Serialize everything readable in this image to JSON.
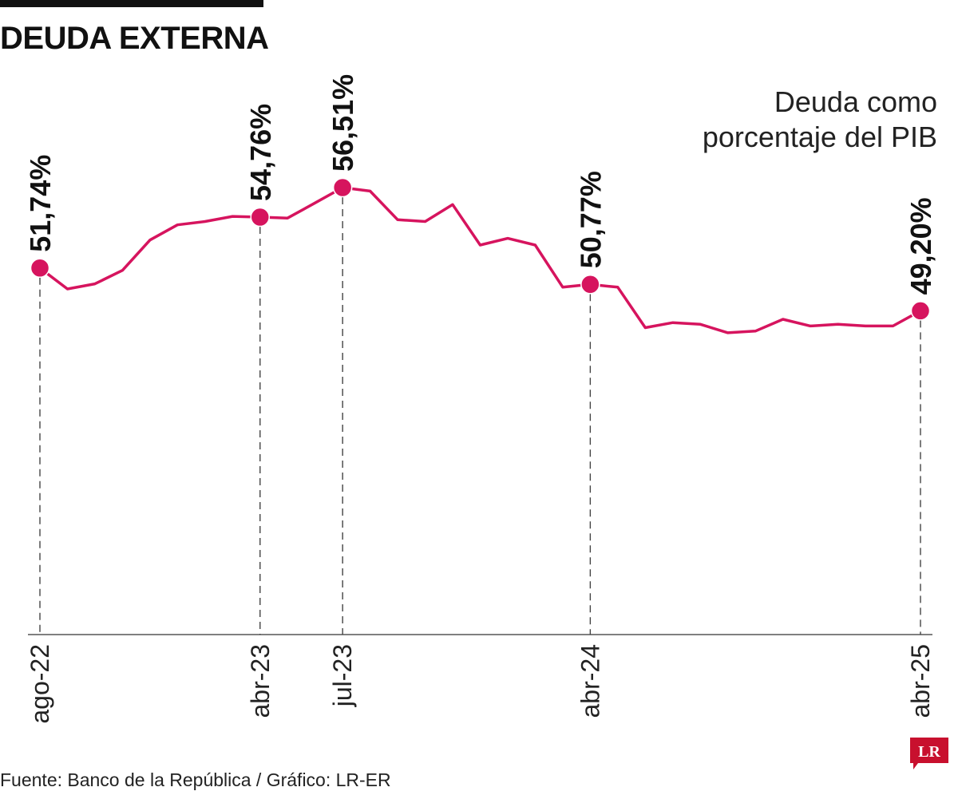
{
  "header": {
    "title": "DEUDA EXTERNA",
    "subtitle_line1": "Deuda como",
    "subtitle_line2": "porcentaje del PIB"
  },
  "footer": {
    "source": "Fuente: Banco de la República / Gráfico: LR-ER",
    "logo_text": "LR"
  },
  "colors": {
    "line": "#d6145e",
    "text": "#111111",
    "logo": "#c8102e"
  },
  "chart_data": {
    "type": "line",
    "title": "DEUDA EXTERNA",
    "subtitle": "Deuda como porcentaje del PIB",
    "ylim": [
      30,
      60
    ],
    "x_tick_labels": [
      "ago-22",
      "abr-23",
      "jul-23",
      "abr-24",
      "abr-25"
    ],
    "highlighted": [
      {
        "index": 0,
        "x": "ago-22",
        "label": "51,74%",
        "value": 51.74
      },
      {
        "index": 8,
        "x": "abr-23",
        "label": "54,76%",
        "value": 54.76
      },
      {
        "index": 11,
        "x": "jul-23",
        "label": "56,51%",
        "value": 56.51
      },
      {
        "index": 20,
        "x": "abr-24",
        "label": "50,77%",
        "value": 50.77
      },
      {
        "index": 32,
        "x": "abr-25",
        "label": "49,20%",
        "value": 49.2
      }
    ],
    "series": [
      {
        "values": [
          51.74,
          50.5,
          50.8,
          51.6,
          53.4,
          54.3,
          54.5,
          54.8,
          54.76,
          54.7,
          55.6,
          56.51,
          56.3,
          54.6,
          54.5,
          55.5,
          53.1,
          53.5,
          53.1,
          50.6,
          50.77,
          50.6,
          48.2,
          48.5,
          48.4,
          47.9,
          48.0,
          48.7,
          48.3,
          48.4,
          48.3,
          48.3,
          49.2
        ]
      }
    ]
  }
}
